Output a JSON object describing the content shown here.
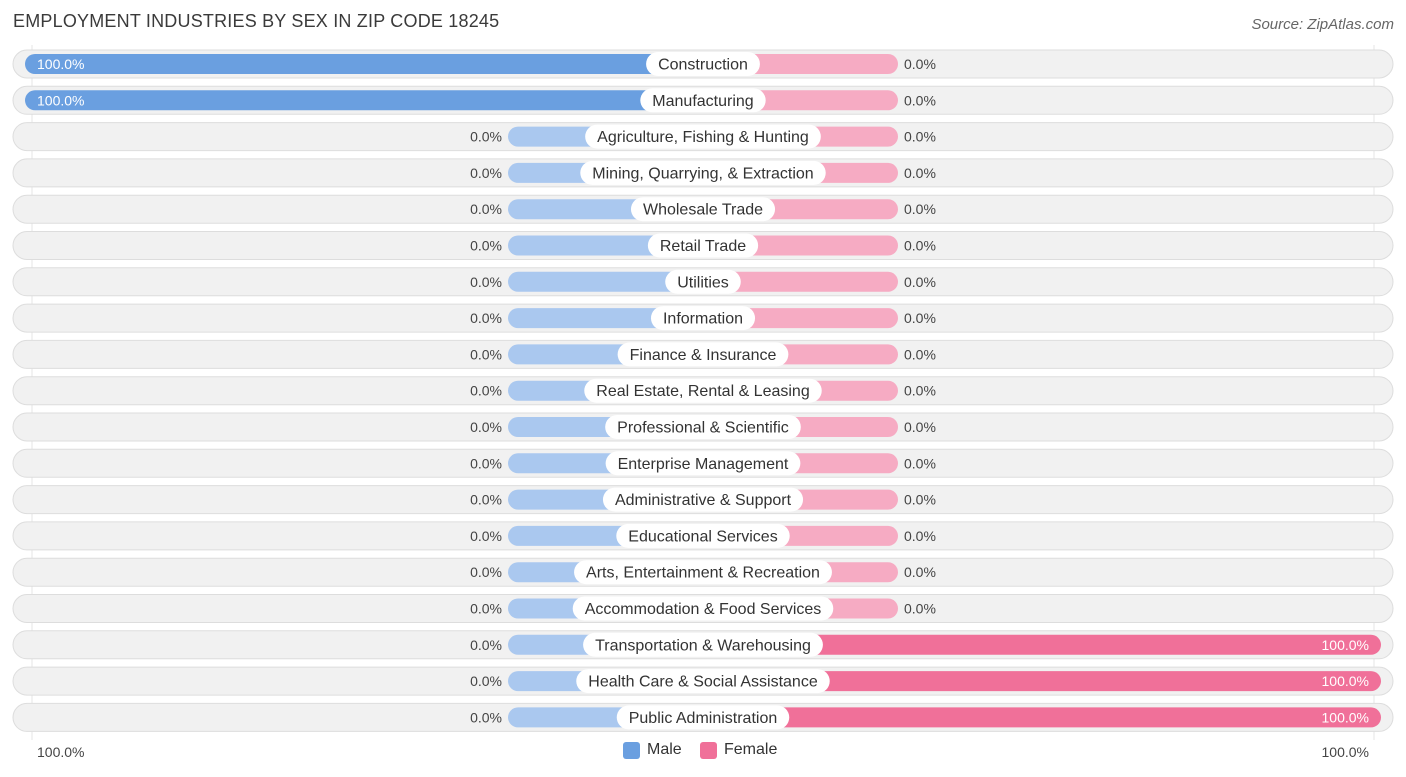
{
  "header": {
    "title": "EMPLOYMENT INDUSTRIES BY SEX IN ZIP CODE 18245",
    "source": "Source: ZipAtlas.com"
  },
  "legend": {
    "male_label": "Male",
    "female_label": "Female",
    "male_color": "#6a9fe0",
    "female_color": "#f07099"
  },
  "axis": {
    "left_label": "100.0%",
    "right_label": "100.0%"
  },
  "chart_data": {
    "type": "bar",
    "orientation": "horizontal-diverging",
    "categories": [
      "Construction",
      "Manufacturing",
      "Agriculture, Fishing & Hunting",
      "Mining, Quarrying, & Extraction",
      "Wholesale Trade",
      "Retail Trade",
      "Utilities",
      "Information",
      "Finance & Insurance",
      "Real Estate, Rental & Leasing",
      "Professional & Scientific",
      "Enterprise Management",
      "Administrative & Support",
      "Educational Services",
      "Arts, Entertainment & Recreation",
      "Accommodation & Food Services",
      "Transportation & Warehousing",
      "Health Care & Social Assistance",
      "Public Administration"
    ],
    "series": [
      {
        "name": "Male",
        "values": [
          100,
          100,
          0,
          0,
          0,
          0,
          0,
          0,
          0,
          0,
          0,
          0,
          0,
          0,
          0,
          0,
          0,
          0,
          0
        ]
      },
      {
        "name": "Female",
        "values": [
          0,
          0,
          0,
          0,
          0,
          0,
          0,
          0,
          0,
          0,
          0,
          0,
          0,
          0,
          0,
          0,
          100,
          100,
          100
        ]
      }
    ],
    "value_labels": {
      "male": [
        "100.0%",
        "100.0%",
        "0.0%",
        "0.0%",
        "0.0%",
        "0.0%",
        "0.0%",
        "0.0%",
        "0.0%",
        "0.0%",
        "0.0%",
        "0.0%",
        "0.0%",
        "0.0%",
        "0.0%",
        "0.0%",
        "0.0%",
        "0.0%",
        "0.0%"
      ],
      "female": [
        "0.0%",
        "0.0%",
        "0.0%",
        "0.0%",
        "0.0%",
        "0.0%",
        "0.0%",
        "0.0%",
        "0.0%",
        "0.0%",
        "0.0%",
        "0.0%",
        "0.0%",
        "0.0%",
        "0.0%",
        "0.0%",
        "100.0%",
        "100.0%",
        "100.0%"
      ]
    },
    "xlim": [
      -100,
      100
    ],
    "legend_position": "bottom-center",
    "colors": {
      "male_full": "#6a9fe0",
      "male_stub": "#aac8ef",
      "female_full": "#f07099",
      "female_stub": "#f6abc3",
      "row_background": "#f1f1f1",
      "row_border": "#dddddd"
    }
  }
}
